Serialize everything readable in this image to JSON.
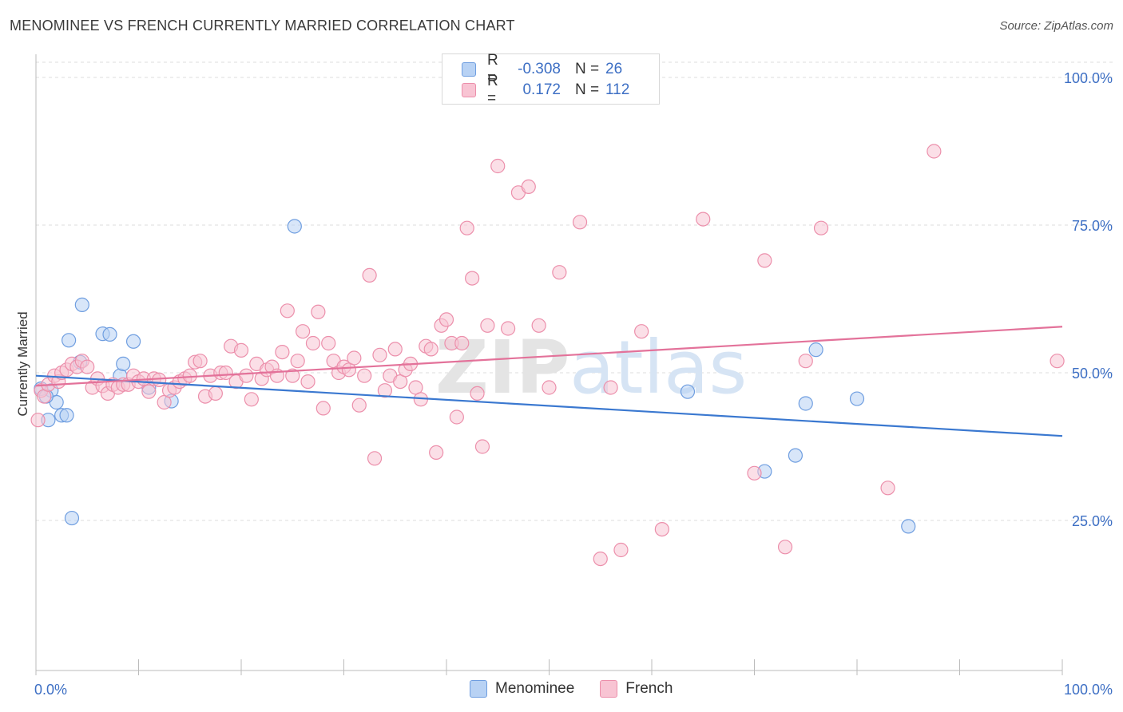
{
  "header": {
    "title": "MENOMINEE VS FRENCH CURRENTLY MARRIED CORRELATION CHART",
    "source": "Source: ZipAtlas.com"
  },
  "legend": {
    "rows": [
      {
        "r_label": "R =",
        "r_value": "-0.308",
        "n_label": "N =",
        "n_value": "26"
      },
      {
        "r_label": "R =",
        "r_value": "0.172",
        "n_label": "N =",
        "n_value": "112"
      }
    ]
  },
  "bottom_legend": {
    "items": [
      {
        "label": "Menominee"
      },
      {
        "label": "French"
      }
    ]
  },
  "colors": {
    "menominee_fill": "#b8d2f4",
    "menominee_stroke": "#6f9ee0",
    "menominee_line": "#3a78d0",
    "french_fill": "#f8c4d3",
    "french_stroke": "#ec8fab",
    "french_line": "#e3729a",
    "axis_label": "#3d6fc4",
    "grid": "#dddddd"
  },
  "chart_data": {
    "type": "scatter",
    "title": "MENOMINEE VS FRENCH CURRENTLY MARRIED CORRELATION CHART",
    "xlabel": "",
    "ylabel": "Currently Married",
    "xlim": [
      0,
      100
    ],
    "ylim": [
      0,
      105
    ],
    "x_tick_labels": [
      "0.0%",
      "100.0%"
    ],
    "y_tick_labels": [
      "25.0%",
      "50.0%",
      "75.0%",
      "100.0%"
    ],
    "y_ticks": [
      25,
      50,
      75,
      100
    ],
    "grid": true,
    "legend_position": "top-center",
    "watermark": "ZIPatlas",
    "series": [
      {
        "name": "Menominee",
        "r": -0.308,
        "n": 26,
        "trend": {
          "x": [
            0,
            100
          ],
          "y": [
            49.5,
            39.3
          ]
        },
        "points": [
          [
            0.5,
            47.3
          ],
          [
            1.2,
            42.0
          ],
          [
            1.5,
            47.0
          ],
          [
            2.0,
            45.0
          ],
          [
            2.5,
            42.8
          ],
          [
            3.0,
            42.8
          ],
          [
            3.2,
            55.5
          ],
          [
            3.5,
            25.4
          ],
          [
            4.5,
            61.5
          ],
          [
            4.3,
            51.8
          ],
          [
            6.5,
            56.6
          ],
          [
            7.2,
            56.5
          ],
          [
            8.2,
            49.5
          ],
          [
            8.5,
            51.5
          ],
          [
            9.5,
            55.3
          ],
          [
            11.0,
            47.5
          ],
          [
            13.2,
            45.2
          ],
          [
            25.2,
            74.8
          ],
          [
            63.5,
            46.8
          ],
          [
            71.0,
            33.3
          ],
          [
            74.0,
            36.0
          ],
          [
            75.0,
            44.8
          ],
          [
            76.0,
            53.9
          ],
          [
            80.0,
            45.6
          ],
          [
            85.0,
            24.0
          ],
          [
            1.0,
            46.0
          ]
        ]
      },
      {
        "name": "French",
        "r": 0.172,
        "n": 112,
        "trend": {
          "x": [
            0,
            100
          ],
          "y": [
            47.8,
            57.8
          ]
        },
        "points": [
          [
            0.2,
            42.0
          ],
          [
            0.5,
            47.0
          ],
          [
            0.8,
            46.0
          ],
          [
            1.2,
            48.0
          ],
          [
            1.8,
            49.5
          ],
          [
            2.2,
            48.5
          ],
          [
            2.5,
            50.0
          ],
          [
            3.0,
            50.5
          ],
          [
            3.5,
            51.5
          ],
          [
            4.0,
            51.0
          ],
          [
            4.5,
            52.0
          ],
          [
            5.0,
            51.0
          ],
          [
            5.5,
            47.5
          ],
          [
            6.0,
            49.0
          ],
          [
            6.5,
            47.8
          ],
          [
            7.0,
            46.5
          ],
          [
            7.5,
            48.0
          ],
          [
            8.0,
            47.5
          ],
          [
            8.5,
            48.0
          ],
          [
            9.0,
            48.0
          ],
          [
            9.5,
            49.5
          ],
          [
            10.0,
            48.5
          ],
          [
            10.5,
            49.0
          ],
          [
            11.0,
            46.8
          ],
          [
            11.5,
            49.0
          ],
          [
            12.0,
            48.8
          ],
          [
            12.5,
            45.0
          ],
          [
            13.0,
            47.0
          ],
          [
            13.5,
            47.5
          ],
          [
            14.0,
            48.5
          ],
          [
            14.5,
            49.0
          ],
          [
            15.0,
            49.5
          ],
          [
            15.5,
            51.8
          ],
          [
            16.0,
            52.0
          ],
          [
            16.5,
            46.0
          ],
          [
            17.0,
            49.5
          ],
          [
            17.5,
            46.5
          ],
          [
            18.0,
            50.0
          ],
          [
            18.5,
            50.0
          ],
          [
            19.0,
            54.5
          ],
          [
            19.5,
            48.5
          ],
          [
            20.0,
            53.8
          ],
          [
            20.5,
            49.5
          ],
          [
            21.0,
            45.5
          ],
          [
            21.5,
            51.5
          ],
          [
            22.0,
            49.0
          ],
          [
            22.5,
            50.5
          ],
          [
            23.0,
            51.0
          ],
          [
            23.5,
            49.5
          ],
          [
            24.0,
            53.5
          ],
          [
            24.5,
            60.5
          ],
          [
            25.0,
            49.5
          ],
          [
            25.5,
            52.0
          ],
          [
            26.0,
            57.0
          ],
          [
            26.5,
            48.5
          ],
          [
            27.0,
            55.0
          ],
          [
            27.5,
            60.3
          ],
          [
            28.0,
            44.0
          ],
          [
            28.5,
            55.0
          ],
          [
            29.0,
            52.0
          ],
          [
            29.5,
            50.0
          ],
          [
            30.0,
            51.0
          ],
          [
            30.5,
            50.5
          ],
          [
            31.0,
            52.5
          ],
          [
            31.5,
            44.5
          ],
          [
            32.0,
            49.5
          ],
          [
            32.5,
            66.5
          ],
          [
            33.0,
            35.5
          ],
          [
            33.5,
            53.0
          ],
          [
            34.0,
            47.0
          ],
          [
            34.5,
            49.5
          ],
          [
            35.0,
            54.0
          ],
          [
            35.5,
            48.5
          ],
          [
            36.0,
            50.5
          ],
          [
            36.5,
            51.5
          ],
          [
            37.0,
            47.5
          ],
          [
            37.5,
            45.5
          ],
          [
            38.0,
            54.5
          ],
          [
            38.5,
            54.0
          ],
          [
            39.0,
            36.5
          ],
          [
            39.5,
            58.0
          ],
          [
            40.0,
            59.0
          ],
          [
            40.5,
            55.0
          ],
          [
            41.0,
            42.5
          ],
          [
            41.5,
            55.0
          ],
          [
            42.0,
            74.5
          ],
          [
            42.5,
            66.0
          ],
          [
            43.0,
            46.5
          ],
          [
            43.5,
            37.5
          ],
          [
            44.0,
            58.0
          ],
          [
            45.0,
            85.0
          ],
          [
            46.0,
            57.5
          ],
          [
            47.0,
            80.5
          ],
          [
            48.0,
            81.5
          ],
          [
            49.0,
            58.0
          ],
          [
            50.0,
            47.5
          ],
          [
            51.0,
            67.0
          ],
          [
            53.0,
            75.5
          ],
          [
            55.0,
            18.5
          ],
          [
            56.0,
            47.5
          ],
          [
            57.0,
            20.0
          ],
          [
            59.0,
            57.0
          ],
          [
            61.0,
            23.5
          ],
          [
            65.0,
            76.0
          ],
          [
            70.0,
            33.0
          ],
          [
            71.0,
            69.0
          ],
          [
            73.0,
            20.5
          ],
          [
            75.0,
            52.0
          ],
          [
            76.5,
            74.5
          ],
          [
            83.0,
            30.5
          ],
          [
            87.5,
            87.5
          ],
          [
            99.5,
            52.0
          ]
        ]
      }
    ]
  }
}
